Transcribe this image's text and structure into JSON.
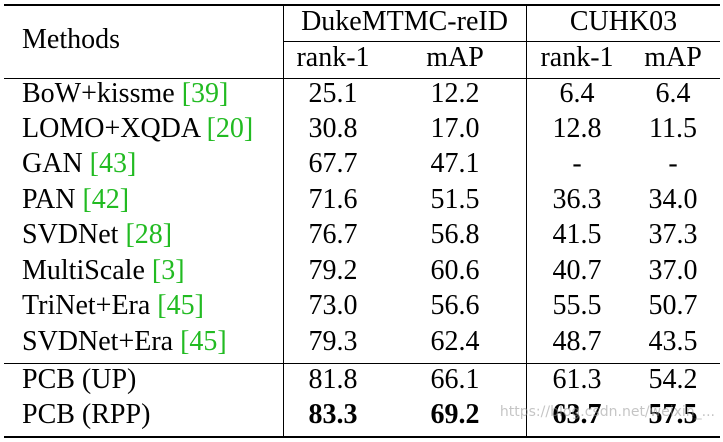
{
  "header": {
    "methods": "Methods",
    "datasets": [
      "DukeMTMC-reID",
      "CUHK03"
    ],
    "metrics": [
      "rank-1",
      "mAP",
      "rank-1",
      "mAP"
    ]
  },
  "rows": [
    {
      "method": "BoW+kissme ",
      "cite": "[39]",
      "values": [
        "25.1",
        "12.2",
        "6.4",
        "6.4"
      ]
    },
    {
      "method": "LOMO+XQDA ",
      "cite": "[20]",
      "values": [
        "30.8",
        "17.0",
        "12.8",
        "11.5"
      ]
    },
    {
      "method": "GAN ",
      "cite": "[43]",
      "values": [
        "67.7",
        "47.1",
        "-",
        "-"
      ]
    },
    {
      "method": "PAN ",
      "cite": "[42]",
      "values": [
        "71.6",
        "51.5",
        "36.3",
        "34.0"
      ]
    },
    {
      "method": "SVDNet ",
      "cite": "[28]",
      "values": [
        "76.7",
        "56.8",
        "41.5",
        "37.3"
      ]
    },
    {
      "method": "MultiScale ",
      "cite": "[3]",
      "values": [
        "79.2",
        "60.6",
        "40.7",
        "37.0"
      ]
    },
    {
      "method": "TriNet+Era ",
      "cite": "[45]",
      "values": [
        "73.0",
        "56.6",
        "55.5",
        "50.7"
      ]
    },
    {
      "method": "SVDNet+Era ",
      "cite": "[45]",
      "values": [
        "79.3",
        "62.4",
        "48.7",
        "43.5"
      ]
    },
    {
      "method": "PCB (UP)",
      "cite": "",
      "values": [
        "81.8",
        "66.1",
        "61.3",
        "54.2"
      ]
    },
    {
      "method": "PCB (RPP)",
      "cite": "",
      "values": [
        "83.3",
        "69.2",
        "63.7",
        "57.5"
      ],
      "bold_values": true
    }
  ],
  "watermark": "https://blog.csdn.net/weixin_...",
  "colors": {
    "citation": "#22bb22",
    "text": "#000000"
  }
}
